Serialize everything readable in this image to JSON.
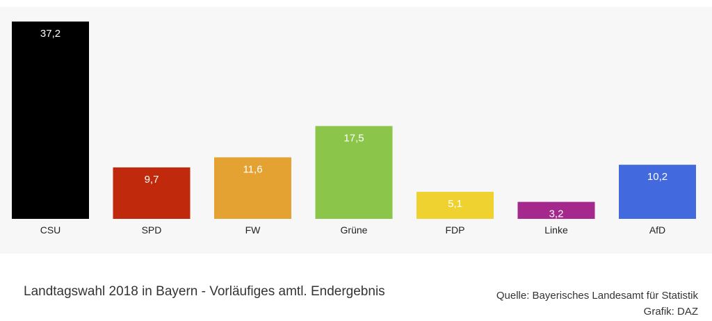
{
  "chart_data": {
    "type": "bar",
    "categories": [
      "CSU",
      "SPD",
      "FW",
      "Grüne",
      "FDP",
      "Linke",
      "AfD"
    ],
    "values": [
      37.2,
      9.7,
      11.6,
      17.5,
      5.1,
      3.2,
      10.2
    ],
    "value_labels": [
      "37,2",
      "9,7",
      "11,6",
      "17,5",
      "5,1",
      "3,2",
      "10,2"
    ],
    "colors": [
      "#000000",
      "#c0290b",
      "#e3a232",
      "#8bc64a",
      "#efd230",
      "#a5298d",
      "#426ade"
    ],
    "ylim": [
      0,
      37.2
    ],
    "grid": false,
    "legend": "none"
  },
  "caption": "Landtagswahl 2018 in Bayern - Vorläufiges amtl. Endergebnis",
  "source_line1": "Quelle: Bayerisches Landesamt für Statistik",
  "source_line2": "Grafik: DAZ"
}
